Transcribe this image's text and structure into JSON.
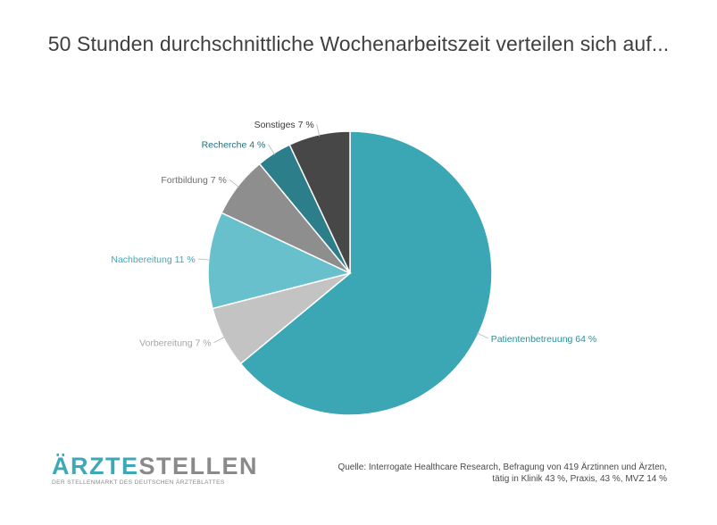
{
  "chart_data": {
    "type": "pie",
    "title": "50 Stunden durchschnittliche Wochenarbeitszeit verteilen sich auf...",
    "slices": [
      {
        "name": "Patientenbetreuung",
        "value": 64,
        "label": "Patientenbetreuung 64 %",
        "color": "#3ba6b4",
        "label_color": "#2b8f9c"
      },
      {
        "name": "Vorbereitung",
        "value": 7,
        "label": "Vorbereitung 7 %",
        "color": "#c3c3c3",
        "label_color": "#a6a6a6"
      },
      {
        "name": "Nachbereitung",
        "value": 11,
        "label": "Nachbereitung 11 %",
        "color": "#68c0cc",
        "label_color": "#3fa8b6"
      },
      {
        "name": "Fortbildung",
        "value": 7,
        "label": "Fortbildung 7 %",
        "color": "#8e8e8e",
        "label_color": "#6e6e6e"
      },
      {
        "name": "Recherche",
        "value": 4,
        "label": "Recherche 4 %",
        "color": "#2b7e8a",
        "label_color": "#1f6f7a"
      },
      {
        "name": "Sonstiges",
        "value": 7,
        "label": "Sonstiges 7 %",
        "color": "#474747",
        "label_color": "#3a3a3a"
      }
    ]
  },
  "logo": {
    "part1": "ÄRZTE",
    "part2": "STELLEN",
    "part1_color": "#3fa8b6",
    "part2_color": "#8a8a8a",
    "tagline": "DER STELLENMARKT DES DEUTSCHEN ÄRZTEBLATTES"
  },
  "source": {
    "line1": "Quelle: Interrogate Healthcare Research, Befragung von 419 Ärztinnen und Ärzten,",
    "line2": "tätig in Klinik 43 %, Praxis, 43 %, MVZ 14 %"
  }
}
